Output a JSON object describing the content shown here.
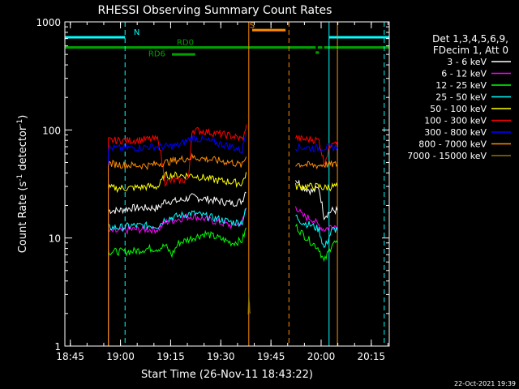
{
  "chart_data": {
    "type": "line",
    "title": "RHESSI Observing Summary Count Rates",
    "xlabel": "Start Time (26-Nov-11 18:43:22)",
    "ylabel": "Count Rate (s",
    "ylabel_sup": "-1",
    "ylabel_tail": " detector",
    "ylabel_close": ")",
    "timestamp": "22-Oct-2021 19:39",
    "x_unit": "minutes since 18:43:22",
    "xlim": [
      0,
      97
    ],
    "ylim": [
      1,
      1000
    ],
    "yscale": "log",
    "x_ticks": [
      {
        "label": "18:45",
        "value": 1.63
      },
      {
        "label": "19:00",
        "value": 16.63
      },
      {
        "label": "19:15",
        "value": 31.63
      },
      {
        "label": "19:30",
        "value": 46.63
      },
      {
        "label": "19:45",
        "value": 61.63
      },
      {
        "label": "20:00",
        "value": 76.63
      },
      {
        "label": "20:15",
        "value": 91.63
      }
    ],
    "y_ticks": [
      {
        "label": "1",
        "value": 1
      },
      {
        "label": "10",
        "value": 10
      },
      {
        "label": "100",
        "value": 100
      },
      {
        "label": "1000",
        "value": 1000
      }
    ],
    "legend": {
      "header": [
        "Det 1,3,4,5,6,9,",
        "FDecim 1, Att 0"
      ],
      "placement": "right"
    },
    "annotations": [
      {
        "text": "N",
        "x": 21.5,
        "level": 760,
        "color": "#00ffff"
      },
      {
        "text": "RD0",
        "x": 36,
        "level": 610,
        "color": "#00a000"
      },
      {
        "text": "RD6",
        "x": 27.5,
        "level": 480,
        "color": "#00a000"
      },
      {
        "text": "S",
        "x": 56,
        "level": 880,
        "color": "#ff8c00"
      }
    ],
    "flags": [
      {
        "color": "#00ffff",
        "segments": [
          [
            0,
            18
          ],
          [
            79,
            97
          ]
        ],
        "level": 720
      },
      {
        "color": "#00a000",
        "segments": [
          [
            0,
            75
          ],
          [
            75.6,
            77
          ],
          [
            77.5,
            97
          ]
        ],
        "level": 580
      },
      {
        "color": "#00a000",
        "segments": [
          [
            32,
            39
          ]
        ],
        "level": 500
      },
      {
        "color": "#00a000",
        "segments": [
          [
            75,
            76
          ]
        ],
        "level": 520
      },
      {
        "color": "#ff8c00",
        "segments": [
          [
            56,
            66
          ]
        ],
        "level": 840
      }
    ],
    "vlines": [
      {
        "x": 0,
        "color": "#00ffff",
        "style": "solid"
      },
      {
        "x": 18,
        "color": "#00ffff",
        "style": "dash"
      },
      {
        "x": 79,
        "color": "#00ffff",
        "style": "solid"
      },
      {
        "x": 95.5,
        "color": "#00ffff",
        "style": "dash"
      },
      {
        "x": 55,
        "color": "#ff8c00",
        "style": "solid"
      },
      {
        "x": 67,
        "color": "#ff8c00",
        "style": "dash"
      },
      {
        "x": 81.5,
        "color": "#ff8c00",
        "style": "solid"
      }
    ],
    "series": [
      {
        "name": "3 - 6 keV",
        "color": "#ffffff",
        "x": [
          13,
          16,
          20,
          25,
          28,
          30,
          34,
          38,
          42,
          46,
          50,
          53,
          54.5,
          69,
          71,
          74,
          76,
          77.5,
          80,
          81.5
        ],
        "y": [
          18,
          18,
          19,
          19,
          19,
          22,
          22,
          24,
          23,
          22,
          21,
          22,
          30,
          35,
          30,
          27,
          29,
          16,
          18,
          18
        ]
      },
      {
        "name": "6 - 12 keV",
        "color": "#ff00ff",
        "x": [
          13,
          16,
          20,
          25,
          28,
          30,
          34,
          38,
          42,
          46,
          50,
          53,
          54.5,
          69,
          71,
          74,
          76,
          77.5,
          80,
          81.5
        ],
        "y": [
          11.5,
          11.5,
          12,
          12,
          12,
          14,
          15,
          16,
          15,
          14,
          13,
          14,
          20,
          20,
          16,
          15,
          13,
          12,
          13,
          13
        ]
      },
      {
        "name": "12 - 25 keV",
        "color": "#00ff00",
        "x": [
          13,
          16,
          20,
          25,
          28,
          30,
          32,
          34,
          38,
          42,
          46,
          50,
          53,
          54.5,
          69,
          71,
          74,
          76,
          77.5,
          80,
          81.5
        ],
        "y": [
          7.5,
          7.5,
          7.5,
          8,
          8,
          8.5,
          7,
          9,
          10,
          11,
          10,
          9,
          9.5,
          13,
          13,
          11,
          9,
          8,
          6,
          9,
          9
        ]
      },
      {
        "name": "25 - 50 keV",
        "color": "#00ffff",
        "x": [
          13,
          16,
          20,
          25,
          28,
          30,
          34,
          38,
          42,
          46,
          50,
          53,
          54.5,
          69,
          71,
          74,
          76,
          77.5,
          80,
          81.5
        ],
        "y": [
          12.5,
          12.5,
          13,
          13,
          13,
          15,
          16,
          17,
          16,
          15,
          14,
          14,
          20,
          16,
          14,
          13,
          12,
          8,
          12,
          12
        ]
      },
      {
        "name": "50 - 100 keV",
        "color": "#ffff00",
        "x": [
          13,
          16,
          20,
          25,
          28,
          30,
          34,
          38,
          42,
          46,
          50,
          53,
          54.5,
          69,
          71,
          74,
          76,
          77.5,
          80,
          81.5
        ],
        "y": [
          29,
          29,
          29,
          30,
          30,
          38,
          38,
          38,
          36,
          34,
          33,
          32,
          42,
          30,
          30,
          30,
          30,
          29,
          30,
          30
        ]
      },
      {
        "name": "100 - 300 keV",
        "color": "#ff0000",
        "x": [
          13,
          16,
          20,
          25,
          28,
          30,
          33,
          35,
          37,
          38,
          42,
          46,
          50,
          53,
          54,
          54.7,
          69,
          71,
          74,
          76,
          77.5,
          80,
          81.5
        ],
        "y": [
          80,
          80,
          80,
          82,
          82,
          33,
          34,
          34,
          35,
          100,
          97,
          92,
          88,
          82,
          95,
          150,
          85,
          82,
          82,
          80,
          50,
          80,
          80
        ]
      },
      {
        "name": "300 - 800 keV",
        "color": "#0000ff",
        "x": [
          13,
          16,
          20,
          25,
          28,
          30,
          34,
          38,
          42,
          46,
          50,
          53,
          54.5,
          69,
          71,
          74,
          76,
          77.5,
          80,
          81.5
        ],
        "y": [
          68,
          68,
          68,
          70,
          70,
          70,
          72,
          85,
          80,
          75,
          70,
          64,
          110,
          70,
          69,
          68,
          68,
          69,
          69,
          69
        ]
      },
      {
        "name": "800 - 7000 keV",
        "color": "#ff8c00",
        "x": [
          13,
          16,
          20,
          25,
          28,
          30,
          34,
          38,
          42,
          46,
          50,
          53,
          54.5,
          69,
          71,
          74,
          76,
          77.5,
          80,
          81.5
        ],
        "y": [
          49,
          48,
          47,
          47,
          49,
          50,
          53,
          56,
          54,
          52,
          50,
          47,
          60,
          49,
          48,
          47,
          47,
          48,
          48,
          48
        ]
      },
      {
        "name": "7000 - 15000 keV",
        "color": "#8b7500",
        "x": [
          54.8,
          55,
          55.2,
          55.4
        ],
        "y": [
          2,
          3,
          2.5,
          2
        ]
      }
    ]
  }
}
